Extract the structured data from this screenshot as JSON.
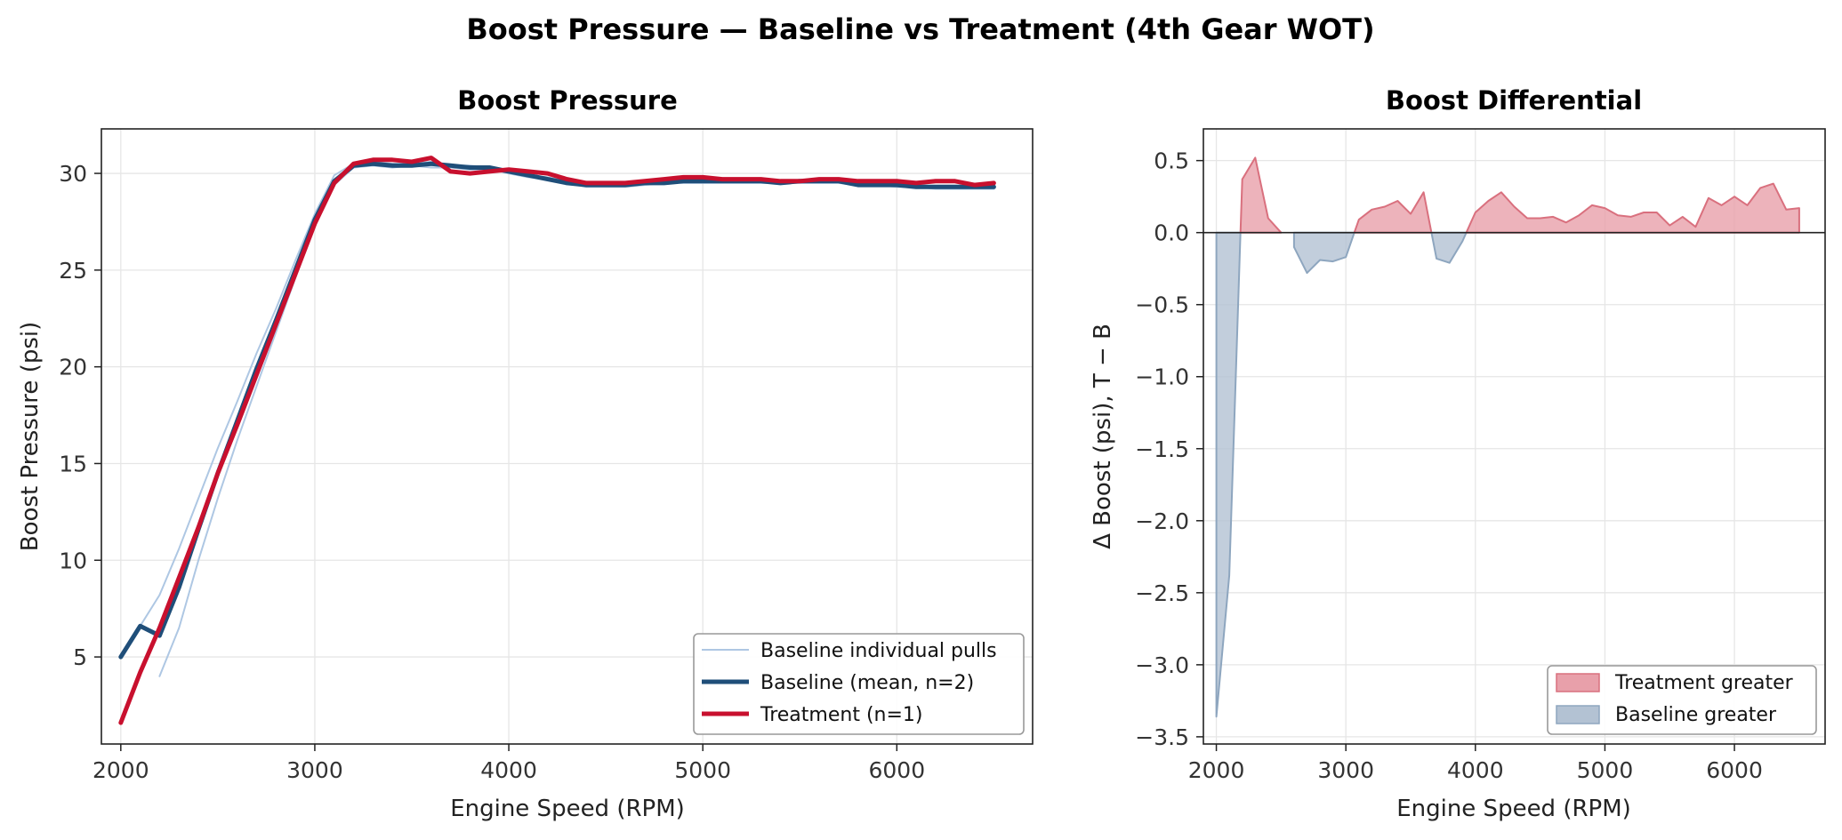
{
  "figure": {
    "title": "Boost Pressure — Baseline vs Treatment (4th Gear WOT)"
  },
  "chart_data": [
    {
      "type": "line",
      "title": "Boost Pressure",
      "xlabel": "Engine Speed (RPM)",
      "ylabel": "Boost Pressure (psi)",
      "xlim": [
        1900,
        6700
      ],
      "ylim": [
        0.5,
        32.3
      ],
      "xticks": [
        2000,
        3000,
        4000,
        5000,
        6000
      ],
      "yticks": [
        5,
        10,
        15,
        20,
        25,
        30
      ],
      "grid": true,
      "legend_position": "lower-right",
      "colors": {
        "individual": "#aec7e3",
        "baseline": "#1f4e79",
        "treatment": "#c8102e"
      },
      "series": [
        {
          "name": "Baseline individual pulls",
          "style": "thin",
          "x": [
            2000,
            2100,
            2200,
            2300,
            2400,
            2500,
            2600,
            2700,
            2800,
            2900,
            3000,
            3100,
            3200,
            3300,
            3400,
            3500,
            3600,
            3700,
            3800,
            3900,
            4000,
            4100,
            4200,
            4300,
            4400,
            4500,
            4600,
            4700,
            4800,
            4900,
            5000,
            5100,
            5200,
            5300,
            5400,
            5500,
            5600,
            5700,
            5800,
            5900,
            6000,
            6100,
            6200,
            6300,
            6400,
            6500
          ],
          "y": [
            5.0,
            6.6,
            8.2,
            10.6,
            13.2,
            15.8,
            18.2,
            20.7,
            23.0,
            25.5,
            27.9,
            29.9,
            30.5,
            30.6,
            30.5,
            30.5,
            30.6,
            30.4,
            30.4,
            30.3,
            30.1,
            29.9,
            29.8,
            29.6,
            29.4,
            29.4,
            29.4,
            29.5,
            29.6,
            29.6,
            29.6,
            29.7,
            29.6,
            29.6,
            29.5,
            29.6,
            29.6,
            29.7,
            29.4,
            29.5,
            29.4,
            29.4,
            29.3,
            29.3,
            29.4,
            29.4
          ]
        },
        {
          "name": "",
          "style": "thin",
          "x": [
            2200,
            2300,
            2400,
            2500,
            2600,
            2700,
            2800,
            2900,
            3000,
            3100,
            3200,
            3300,
            3400,
            3500,
            3600,
            3700,
            3800,
            3900,
            4000,
            4100,
            4200,
            4300,
            4400,
            4500,
            4600,
            4700,
            4800,
            4900,
            5000,
            5100,
            5200,
            5300,
            5400,
            5500,
            5600,
            5700,
            5800,
            5900,
            6000,
            6100,
            6200,
            6300,
            6400,
            6500
          ],
          "y": [
            4.0,
            6.5,
            10.0,
            13.2,
            16.2,
            19.0,
            21.8,
            24.6,
            27.3,
            29.4,
            30.3,
            30.4,
            30.3,
            30.4,
            30.3,
            30.3,
            30.2,
            30.2,
            30.0,
            29.8,
            29.7,
            29.5,
            29.3,
            29.3,
            29.3,
            29.4,
            29.5,
            29.5,
            29.5,
            29.5,
            29.5,
            29.5,
            29.5,
            29.5,
            29.5,
            29.5,
            29.4,
            29.4,
            29.3,
            29.3,
            29.2,
            29.2,
            29.2,
            29.2
          ]
        },
        {
          "name": "Baseline (mean, n=2)",
          "style": "thick",
          "x": [
            2000,
            2100,
            2200,
            2300,
            2400,
            2500,
            2600,
            2700,
            2800,
            2900,
            3000,
            3100,
            3200,
            3300,
            3400,
            3500,
            3600,
            3700,
            3800,
            3900,
            4000,
            4100,
            4200,
            4300,
            4400,
            4500,
            4600,
            4700,
            4800,
            4900,
            5000,
            5100,
            5200,
            5300,
            5400,
            5500,
            5600,
            5700,
            5800,
            5900,
            6000,
            6100,
            6200,
            6300,
            6400,
            6500
          ],
          "y": [
            5.0,
            6.6,
            6.1,
            8.6,
            11.6,
            14.5,
            17.2,
            19.9,
            22.4,
            25.0,
            27.6,
            29.6,
            30.4,
            30.5,
            30.4,
            30.4,
            30.5,
            30.4,
            30.3,
            30.3,
            30.1,
            29.9,
            29.7,
            29.5,
            29.4,
            29.4,
            29.4,
            29.5,
            29.5,
            29.6,
            29.6,
            29.6,
            29.6,
            29.6,
            29.5,
            29.6,
            29.6,
            29.6,
            29.4,
            29.4,
            29.4,
            29.3,
            29.3,
            29.3,
            29.3,
            29.3
          ]
        },
        {
          "name": "Treatment (n=1)",
          "style": "thick",
          "x": [
            2000,
            2100,
            2200,
            2300,
            2400,
            2500,
            2600,
            2700,
            2800,
            2900,
            3000,
            3100,
            3200,
            3300,
            3400,
            3500,
            3600,
            3700,
            3800,
            3900,
            4000,
            4100,
            4200,
            4300,
            4400,
            4500,
            4600,
            4700,
            4800,
            4900,
            5000,
            5100,
            5200,
            5300,
            5400,
            5500,
            5600,
            5700,
            5800,
            5900,
            6000,
            6100,
            6200,
            6300,
            6400,
            6500
          ],
          "y": [
            1.6,
            4.2,
            6.5,
            9.1,
            11.7,
            14.5,
            17.0,
            19.6,
            22.2,
            24.8,
            27.4,
            29.5,
            30.5,
            30.7,
            30.7,
            30.6,
            30.8,
            30.1,
            30.0,
            30.1,
            30.2,
            30.1,
            30.0,
            29.7,
            29.5,
            29.5,
            29.5,
            29.6,
            29.7,
            29.8,
            29.8,
            29.7,
            29.7,
            29.7,
            29.6,
            29.6,
            29.7,
            29.7,
            29.6,
            29.6,
            29.6,
            29.5,
            29.6,
            29.6,
            29.4,
            29.5
          ]
        }
      ]
    },
    {
      "type": "area",
      "title": "Boost Differential",
      "xlabel": "Engine Speed (RPM)",
      "ylabel": "Δ Boost (psi), T − B",
      "xlim": [
        1900,
        6700
      ],
      "ylim": [
        -3.55,
        0.72
      ],
      "xticks": [
        2000,
        3000,
        4000,
        5000,
        6000
      ],
      "yticks": [
        0.5,
        0.0,
        -0.5,
        -1.0,
        -1.5,
        -2.0,
        -2.5,
        -3.0,
        -3.5
      ],
      "ytick_labels": [
        "0.5",
        "0.0",
        "−0.5",
        "−1.0",
        "−1.5",
        "−2.0",
        "−2.5",
        "−3.0",
        "−3.5"
      ],
      "grid": true,
      "legend_position": "lower-right",
      "colors": {
        "positive": "#e8a0aa",
        "positive_edge": "#d9707e",
        "negative": "#b3c2d3",
        "negative_edge": "#8ea6bf"
      },
      "x": [
        2000,
        2100,
        2200,
        2300,
        2400,
        2500,
        2600,
        2700,
        2800,
        2900,
        3000,
        3100,
        3200,
        3300,
        3400,
        3500,
        3600,
        3700,
        3800,
        3900,
        4000,
        4100,
        4200,
        4300,
        4400,
        4500,
        4600,
        4700,
        4800,
        4900,
        5000,
        5100,
        5200,
        5300,
        5400,
        5500,
        5600,
        5700,
        5800,
        5900,
        6000,
        6100,
        6200,
        6300,
        6400,
        6500
      ],
      "delta": [
        -3.36,
        -2.38,
        0.37,
        0.52,
        0.1,
        0.0,
        -0.1,
        -0.28,
        -0.19,
        -0.2,
        -0.17,
        0.09,
        0.16,
        0.18,
        0.22,
        0.13,
        0.28,
        -0.18,
        -0.21,
        -0.06,
        0.14,
        0.22,
        0.28,
        0.18,
        0.1,
        0.1,
        0.11,
        0.07,
        0.12,
        0.19,
        0.17,
        0.12,
        0.11,
        0.14,
        0.14,
        0.05,
        0.11,
        0.04,
        0.24,
        0.19,
        0.25,
        0.19,
        0.31,
        0.34,
        0.16,
        0.17
      ],
      "series": [
        {
          "name": "Treatment greater"
        },
        {
          "name": "Baseline greater"
        }
      ]
    }
  ]
}
